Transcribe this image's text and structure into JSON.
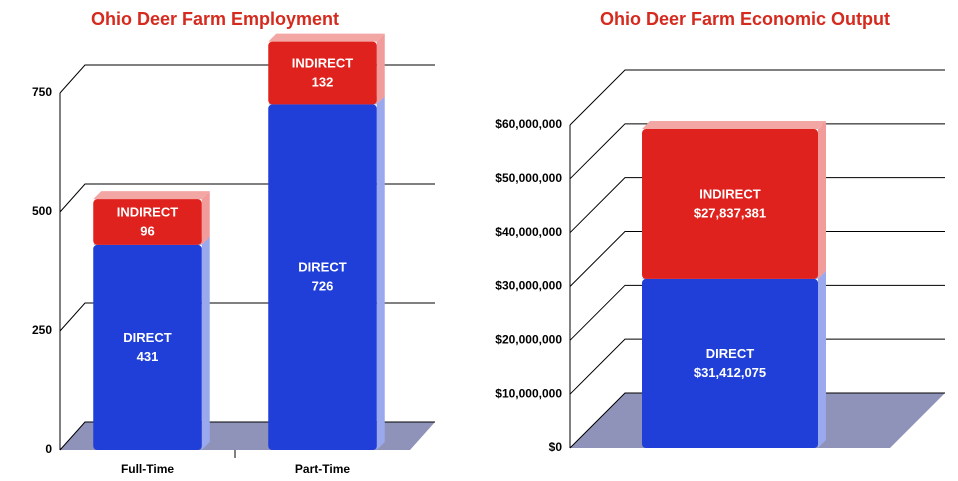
{
  "chart_data": [
    {
      "type": "bar",
      "title": "Ohio Deer Farm Employment",
      "categories": [
        "Full-Time",
        "Part-Time"
      ],
      "series": [
        {
          "name": "DIRECT",
          "color": "#1f3fd8",
          "values": [
            431,
            726
          ]
        },
        {
          "name": "INDIRECT",
          "color": "#e0221e",
          "values": [
            96,
            132
          ]
        }
      ],
      "stacked": true,
      "ylim": [
        0,
        750
      ],
      "yticks": [
        0,
        250,
        500,
        750
      ],
      "grid": true
    },
    {
      "type": "bar",
      "title": "Ohio Deer Farm Economic Output",
      "categories": [
        null
      ],
      "series": [
        {
          "name": "DIRECT",
          "color": "#1f3fd8",
          "values": [
            31412075
          ],
          "value_labels": [
            "$31,412,075"
          ]
        },
        {
          "name": "INDIRECT",
          "color": "#e0221e",
          "values": [
            27837381
          ],
          "value_labels": [
            "$27,837,381"
          ]
        }
      ],
      "stacked": true,
      "ylim": [
        0,
        60000000
      ],
      "yticks": [
        {
          "value": 0,
          "label": "$0"
        },
        {
          "value": 10000000,
          "label": "$10,000,000"
        },
        {
          "value": 20000000,
          "label": "$20,000,000"
        },
        {
          "value": 30000000,
          "label": "$30,000,000"
        },
        {
          "value": 40000000,
          "label": "$40,000,000"
        },
        {
          "value": 50000000,
          "label": "$50,000,000"
        },
        {
          "value": 60000000,
          "label": "$60,000,000"
        }
      ],
      "grid": true
    }
  ]
}
